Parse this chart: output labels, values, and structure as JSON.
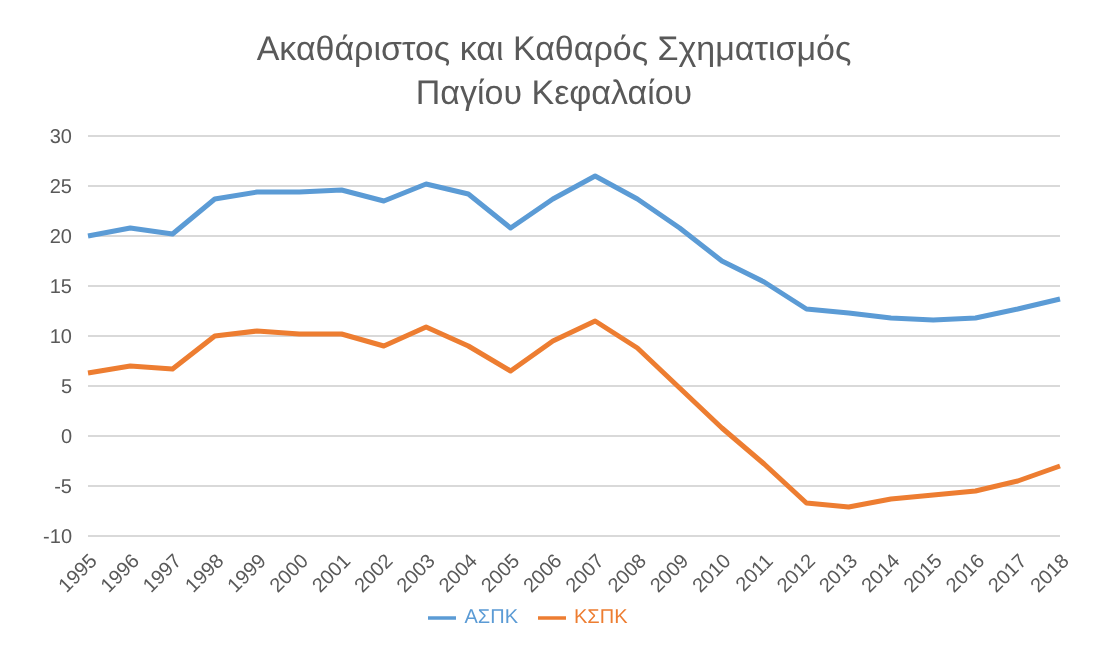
{
  "chart_data": {
    "type": "line",
    "title": "Ακαθάριστος και Καθαρός Σχηματισμός Παγίου Κεφαλαίου",
    "categories": [
      "1995",
      "1996",
      "1997",
      "1998",
      "1999",
      "2000",
      "2001",
      "2002",
      "2003",
      "2004",
      "2005",
      "2006",
      "2007",
      "2008",
      "2009",
      "2010",
      "2011",
      "2012",
      "2013",
      "2014",
      "2015",
      "2016",
      "2017",
      "2018"
    ],
    "series": [
      {
        "name": "ΑΣΠΚ",
        "color": "#5b9bd5",
        "values": [
          20,
          20.8,
          20.2,
          23.7,
          24.4,
          24.4,
          24.6,
          23.5,
          25.2,
          24.2,
          20.8,
          23.7,
          26,
          23.7,
          20.8,
          17.5,
          15.4,
          12.7,
          12.3,
          11.8,
          11.6,
          11.8,
          12.7,
          13.7
        ]
      },
      {
        "name": "ΚΣΠΚ",
        "color": "#ed7d31",
        "values": [
          6.3,
          7,
          6.7,
          10,
          10.5,
          10.2,
          10.2,
          9,
          10.9,
          9,
          6.5,
          9.5,
          11.5,
          8.8,
          4.8,
          0.8,
          -2.8,
          -6.7,
          -7.1,
          -6.3,
          -5.9,
          -5.5,
          -4.5,
          -3
        ]
      }
    ],
    "ylim": [
      -10,
      30
    ],
    "yticks": [
      -10,
      -5,
      0,
      5,
      10,
      15,
      20,
      25,
      30
    ],
    "grid": "y",
    "legend": "bottom",
    "marker": "none",
    "line_style": "solid"
  }
}
